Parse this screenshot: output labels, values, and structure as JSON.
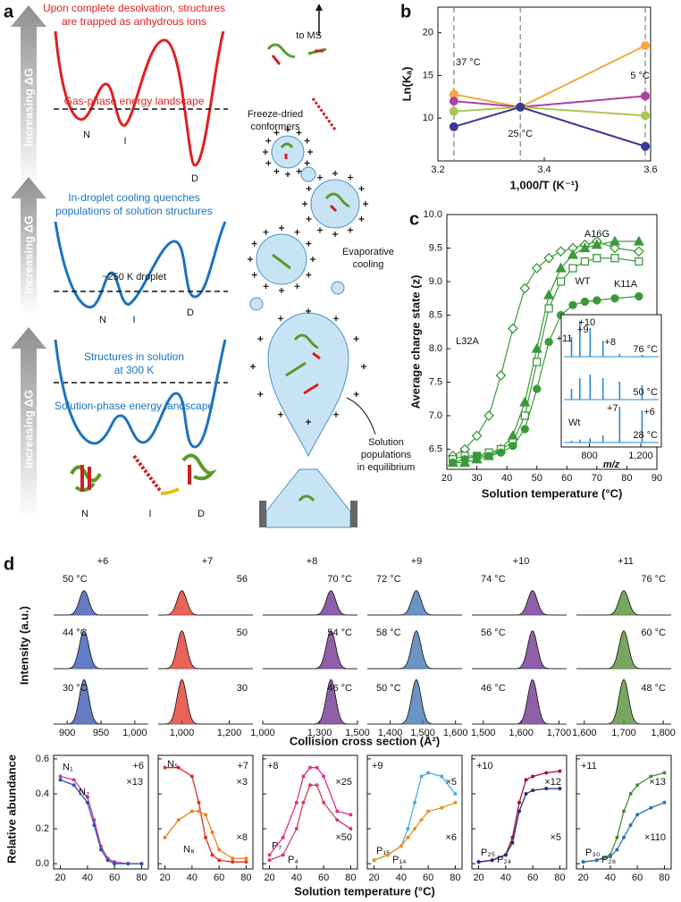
{
  "diagram": {
    "panel_label": "a",
    "gradient_label": "Increasing ΔG",
    "landscapes": [
      {
        "caption": [
          "Upon complete desolvation, structures",
          "are trapped as anhydrous ions"
        ],
        "label": "Gas-phase energy landscape",
        "states": [
          "N",
          "I",
          "D"
        ]
      },
      {
        "caption": [
          "In-droplet cooling quenches",
          "populations of solution structures"
        ],
        "label": "~250 K droplet",
        "states": [
          "N",
          "I",
          "D"
        ]
      },
      {
        "caption": [
          "Structures in solution",
          "at 300 K"
        ],
        "label": "Solution-phase energy landscape",
        "states": [
          "N",
          "I",
          "D"
        ]
      }
    ],
    "to_ms": "to MS",
    "freeze_dried": [
      "Freeze-dried",
      "conformers"
    ],
    "evaporative": [
      "Evaporative",
      "cooling"
    ],
    "solution_populations": [
      "Solution",
      "populations",
      "in equilibrium"
    ]
  },
  "chart_data": [
    {
      "type": "line",
      "panel_label": "b",
      "xlabel": "1,000/T (K⁻¹)",
      "ylabel": "Ln(Kₐ)",
      "x": [
        3.23,
        3.355,
        3.59
      ],
      "xlim": [
        3.2,
        3.6
      ],
      "xticks": [
        3.2,
        3.4,
        3.6
      ],
      "ylim": [
        5,
        23
      ],
      "yticks": [
        10,
        15,
        20
      ],
      "annotations": [
        "37 °C",
        "25 °C",
        "5 °C"
      ],
      "series": [
        {
          "color": "#f5a742",
          "values": [
            12.8,
            11.3,
            18.5
          ]
        },
        {
          "color": "#b040a0",
          "values": [
            12.0,
            11.3,
            12.6
          ]
        },
        {
          "color": "#a8c850",
          "values": [
            10.8,
            11.3,
            10.3
          ]
        },
        {
          "color": "#3a3a90",
          "values": [
            9.0,
            11.3,
            6.7
          ]
        }
      ]
    },
    {
      "type": "line",
      "panel_label": "c",
      "xlabel": "Solution temperature (°C)",
      "ylabel": "Average charge state (z)",
      "x": [
        22,
        26,
        30,
        34,
        38,
        42,
        46,
        50,
        54,
        58,
        62,
        66,
        70,
        76,
        84
      ],
      "xlim": [
        20,
        90
      ],
      "xticks": [
        20,
        30,
        40,
        50,
        60,
        70,
        80,
        90
      ],
      "ylim": [
        6.2,
        10
      ],
      "yticks": [
        6.5,
        {
          "value": 7,
          "label": "7.0"
        },
        7.5,
        {
          "value": 8,
          "label": "8.0"
        },
        8.5,
        {
          "value": 9,
          "label": "9.0"
        },
        9.5,
        {
          "value": 10,
          "label": "10.0"
        }
      ],
      "series": [
        {
          "name": "L32A",
          "color": "#3a9a3a",
          "marker": "diamond",
          "filled": false,
          "values": [
            6.4,
            6.5,
            6.7,
            7.0,
            7.6,
            8.3,
            8.9,
            9.2,
            9.35,
            9.45,
            9.5,
            9.55,
            9.6,
            9.5,
            9.45
          ]
        },
        {
          "name": "A16G",
          "color": "#3a9a3a",
          "marker": "triangle",
          "filled": true,
          "values": [
            6.3,
            6.3,
            6.35,
            6.4,
            6.5,
            6.7,
            7.2,
            8.0,
            8.8,
            9.2,
            9.4,
            9.5,
            9.55,
            9.6,
            9.6
          ]
        },
        {
          "name": "WT",
          "color": "#3a9a3a",
          "marker": "square",
          "filled": false,
          "values": [
            6.35,
            6.4,
            6.4,
            6.45,
            6.5,
            6.6,
            7.0,
            7.8,
            8.6,
            9.0,
            9.2,
            9.3,
            9.35,
            9.35,
            9.3
          ]
        },
        {
          "name": "K11A",
          "color": "#3a9a3a",
          "marker": "circle",
          "filled": true,
          "values": [
            6.3,
            6.35,
            6.4,
            6.4,
            6.45,
            6.55,
            6.8,
            7.4,
            8.1,
            8.5,
            8.65,
            8.7,
            8.72,
            8.75,
            8.78
          ]
        }
      ],
      "inset": {
        "xlabel": "m/z",
        "xlim": [
          580,
          1360
        ],
        "xticks": [
          800,
          {
            "value": 1200,
            "label": "1,200"
          }
        ],
        "color": "#2a88d0",
        "rows": [
          {
            "temp": "76 °C",
            "peaks": [
              {
                "mz": 660,
                "height": 0.55,
                "label": "+11"
              },
              {
                "mz": 725,
                "height": 1,
                "label": "+10"
              },
              {
                "mz": 805,
                "height": 0.8,
                "label": "+9"
              },
              {
                "mz": 905,
                "height": 0.45,
                "label": "+8"
              },
              {
                "mz": 1035,
                "height": 0.08
              },
              {
                "mz": 1210,
                "height": 0.05
              }
            ]
          },
          {
            "temp": "50 °C",
            "peaks": [
              {
                "mz": 660,
                "height": 0.3
              },
              {
                "mz": 725,
                "height": 0.6
              },
              {
                "mz": 805,
                "height": 0.7
              },
              {
                "mz": 905,
                "height": 0.6
              },
              {
                "mz": 1035,
                "height": 0.5
              },
              {
                "mz": 1210,
                "height": 0.4
              }
            ]
          },
          {
            "temp": "28 °C",
            "variant": "Wt",
            "peaks": [
              {
                "mz": 660,
                "height": 0.05
              },
              {
                "mz": 725,
                "height": 0.08
              },
              {
                "mz": 805,
                "height": 0.12
              },
              {
                "mz": 905,
                "height": 0.2
              },
              {
                "mz": 1035,
                "height": 1,
                "label": "+7"
              },
              {
                "mz": 1210,
                "height": 0.9,
                "label": "+6"
              }
            ]
          }
        ]
      }
    },
    {
      "type": "spectra",
      "panel_label": "d",
      "ylabel": "Intensity (a.u.)",
      "xlabel": "Collision cross section (Å²)",
      "panels": [
        {
          "charge": "+6",
          "xlim": [
            880,
            1020
          ],
          "xticks": [
            900,
            950,
            {
              "value": 1000,
              "label": "1,000"
            }
          ],
          "peak": 925,
          "temps": [
            "50 °C",
            "44 °C",
            "30 °C"
          ],
          "color": "#3050b0"
        },
        {
          "charge": "+7",
          "xlim": [
            900,
            1300
          ],
          "xticks": [
            {
              "value": 1000,
              "label": "1,000"
            },
            {
              "value": 1200,
              "label": "1,200"
            }
          ],
          "peak": 1000,
          "temps": [
            "56",
            "50",
            "30"
          ],
          "color": "#e03020"
        },
        {
          "charge": "+8",
          "xlim": [
            1000,
            1500
          ],
          "xticks": [
            {
              "value": 1000,
              "label": "1,000"
            },
            {
              "value": 1300,
              "label": "1,300"
            },
            {
              "value": 1500,
              "label": "1,500"
            }
          ],
          "peak": 1360,
          "temps": [
            "70 °C",
            "54 °C",
            "46 °C"
          ],
          "color": "#6a2a8a"
        },
        {
          "charge": "+9",
          "xlim": [
            1330,
            1620
          ],
          "xticks": [
            {
              "value": 1400,
              "label": "1,400"
            },
            {
              "value": 1500,
              "label": "1,500"
            },
            {
              "value": 1600,
              "label": "1,600"
            }
          ],
          "peak": 1480,
          "temps": [
            "72 °C",
            "58 °C",
            "50 °C"
          ],
          "color": "#3a70b0"
        },
        {
          "charge": "+10",
          "xlim": [
            1470,
            1720
          ],
          "xticks": [
            {
              "value": 1500,
              "label": "1,500"
            },
            {
              "value": 1600,
              "label": "1,600"
            },
            {
              "value": 1700,
              "label": "1,700"
            }
          ],
          "peak": 1630,
          "temps": [
            "74 °C",
            "56 °C",
            "46 °C"
          ],
          "color": "#6a2a8a"
        },
        {
          "charge": "+11",
          "xlim": [
            1580,
            1820
          ],
          "xticks": [
            {
              "value": 1600,
              "label": "1,600"
            },
            {
              "value": 1700,
              "label": "1,700"
            },
            {
              "value": 1800,
              "label": "1,800"
            }
          ],
          "peak": 1700,
          "temps": [
            "76 °C",
            "60 °C",
            "48 °C"
          ],
          "color": "#4a8a2a"
        }
      ]
    },
    {
      "type": "scatter",
      "ylabel": "Relative abundance",
      "xlabel": "Solution temperature (°C)",
      "x": [
        20,
        30,
        40,
        45,
        50,
        55,
        60,
        70,
        80
      ],
      "xlim": [
        15,
        85
      ],
      "xticks": [
        20,
        40,
        60,
        80
      ],
      "ylim": [
        -0.03,
        0.62
      ],
      "yticks": [
        {
          "value": 0,
          "label": "0.0"
        },
        {
          "value": 0.2,
          "label": "0.2"
        },
        {
          "value": 0.4,
          "label": "0.4"
        },
        {
          "value": 0.6,
          "label": "0.6"
        }
      ],
      "panels": [
        {
          "charge": "+6",
          "multipliers": [
            "×13"
          ],
          "series": [
            {
              "name": "N₁",
              "color": "#c040a0",
              "values": [
                0.5,
                0.48,
                0.38,
                0.25,
                0.1,
                0.03,
                0.01,
                0,
                0
              ]
            },
            {
              "name": "N₂",
              "color": "#3050b0",
              "values": [
                0.48,
                0.45,
                0.35,
                0.22,
                0.08,
                0.02,
                0,
                0,
                0
              ]
            }
          ]
        },
        {
          "charge": "+7",
          "multipliers": [
            "×3",
            "×8"
          ],
          "series": [
            {
              "name": "N₅",
              "color": "#e03020",
              "values": [
                0.55,
                0.55,
                0.5,
                0.35,
                0.15,
                0.05,
                0.02,
                0.01,
                0.01
              ]
            },
            {
              "name": "N₈",
              "color": "#f08020",
              "values": [
                0.15,
                0.25,
                0.3,
                0.3,
                0.28,
                0.18,
                0.08,
                0.03,
                0.03
              ]
            }
          ]
        },
        {
          "charge": "+8",
          "multipliers": [
            "×25",
            "×50"
          ],
          "series": [
            {
              "name": "P₇",
              "color": "#e0308a",
              "values": [
                0.05,
                0.15,
                0.35,
                0.5,
                0.55,
                0.55,
                0.5,
                0.3,
                0.28
              ]
            },
            {
              "name": "P₄",
              "color": "#d04060",
              "values": [
                0.02,
                0.05,
                0.2,
                0.35,
                0.45,
                0.45,
                0.35,
                0.25,
                0.2
              ]
            }
          ]
        },
        {
          "charge": "+9",
          "multipliers": [
            "×5",
            "×6"
          ],
          "series": [
            {
              "name": "P₁₅",
              "color": "#40b0e0",
              "values": [
                0.02,
                0.05,
                0.1,
                0.2,
                0.35,
                0.5,
                0.52,
                0.5,
                0.4
              ]
            },
            {
              "name": "P₁₄",
              "color": "#f09020",
              "values": [
                0.02,
                0.05,
                0.1,
                0.15,
                0.2,
                0.25,
                0.3,
                0.32,
                0.35
              ]
            }
          ]
        },
        {
          "charge": "+10",
          "multipliers": [
            "×12",
            "×5"
          ],
          "series": [
            {
              "name": "P₂₅",
              "color": "#a01030",
              "values": [
                0.01,
                0.02,
                0.05,
                0.15,
                0.35,
                0.48,
                0.5,
                0.52,
                0.53
              ]
            },
            {
              "name": "P₂₄",
              "color": "#203080",
              "values": [
                0.01,
                0.02,
                0.05,
                0.12,
                0.3,
                0.4,
                0.42,
                0.43,
                0.43
              ]
            }
          ]
        },
        {
          "charge": "+11",
          "multipliers": [
            "×13",
            "×110"
          ],
          "series": [
            {
              "name": "P₃₀",
              "color": "#409030",
              "values": [
                0.01,
                0.02,
                0.05,
                0.15,
                0.3,
                0.4,
                0.45,
                0.5,
                0.52
              ]
            },
            {
              "name": "P₂₈",
              "color": "#3070c0",
              "values": [
                0.01,
                0.02,
                0.04,
                0.08,
                0.15,
                0.22,
                0.28,
                0.32,
                0.35
              ]
            }
          ]
        }
      ]
    }
  ]
}
